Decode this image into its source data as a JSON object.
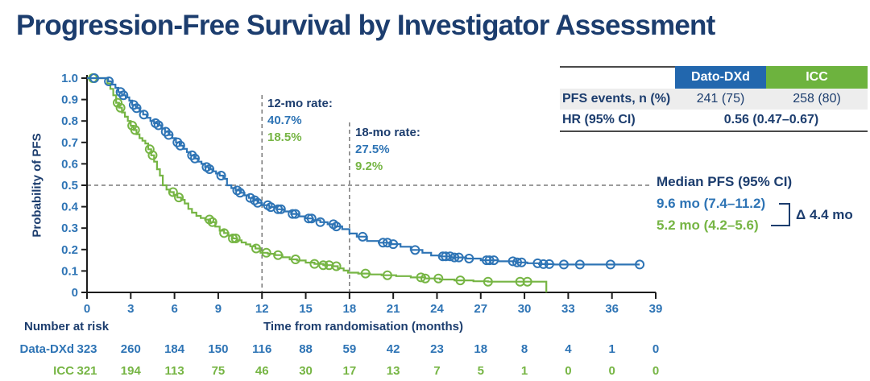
{
  "title": "Progression-Free Survival by Investigator Assessment",
  "colors": {
    "navy": "#1C3D6E",
    "dato_blue": "#2E74B5",
    "icc_green": "#76B544",
    "header_blue": "#2267AE",
    "header_green": "#6DB33E",
    "row_gray": "#EDEDED"
  },
  "summary_table": {
    "columns": [
      "Dato-DXd",
      "ICC"
    ],
    "rows": [
      {
        "label": "PFS events, n (%)",
        "values": [
          "241 (75)",
          "258 (80)"
        ]
      },
      {
        "label": "HR (95% CI)",
        "values": [
          "0.56 (0.47–0.67)"
        ]
      }
    ]
  },
  "annotations": {
    "rate_12mo": {
      "title": "12-mo rate:",
      "values": [
        "40.7%",
        "18.5%"
      ]
    },
    "rate_18mo": {
      "title": "18-mo rate:",
      "values": [
        "27.5%",
        "9.2%"
      ]
    },
    "median": {
      "title": "Median PFS (95% CI)",
      "dato": "9.6 mo (7.4–11.2)",
      "icc": "5.2 mo (4.2–5.6)",
      "delta": "Δ 4.4 mo"
    }
  },
  "chart_data": {
    "type": "line",
    "subtype": "kaplan-meier-step",
    "xlabel": "Time from randomisation (months)",
    "ylabel": "Probability of PFS",
    "xlim": [
      0,
      39
    ],
    "ylim": [
      0,
      1
    ],
    "xticks": [
      0,
      3,
      6,
      9,
      12,
      15,
      18,
      21,
      24,
      27,
      30,
      33,
      36,
      39
    ],
    "yticks": [
      1.0,
      0.9,
      0.8,
      0.7,
      0.6,
      0.5,
      0.4,
      0.3,
      0.2,
      0.1,
      0
    ],
    "ytick_labels": [
      "1.0",
      "0.9",
      "0.8",
      "0.7",
      "0.6",
      "0.5",
      "0.4",
      "0.3",
      "0.2",
      "0.1",
      "0"
    ],
    "grid": false,
    "legend": "none",
    "reference_lines": {
      "y": 0.5,
      "x": [
        12,
        18
      ]
    },
    "series": [
      {
        "name": "Dato-DXd",
        "color": "#2E74B5",
        "median_months": 9.6,
        "rate_12mo": 0.407,
        "rate_18mo": 0.275,
        "end_time": 37.9,
        "drops_to_zero": false,
        "steps": [
          [
            0,
            1
          ],
          [
            1.2,
            1
          ],
          [
            1.45,
            0.985
          ],
          [
            1.7,
            0.97
          ],
          [
            1.95,
            0.955
          ],
          [
            2.15,
            0.935
          ],
          [
            2.4,
            0.92
          ],
          [
            2.65,
            0.91
          ],
          [
            2.9,
            0.895
          ],
          [
            3.1,
            0.875
          ],
          [
            3.35,
            0.86
          ],
          [
            3.6,
            0.845
          ],
          [
            3.85,
            0.83
          ],
          [
            4.1,
            0.815
          ],
          [
            4.35,
            0.8
          ],
          [
            4.6,
            0.79
          ],
          [
            4.85,
            0.78
          ],
          [
            5.1,
            0.765
          ],
          [
            5.35,
            0.75
          ],
          [
            5.6,
            0.735
          ],
          [
            5.85,
            0.72
          ],
          [
            6.1,
            0.7
          ],
          [
            6.35,
            0.685
          ],
          [
            6.6,
            0.67
          ],
          [
            6.85,
            0.655
          ],
          [
            7.1,
            0.64
          ],
          [
            7.35,
            0.625
          ],
          [
            7.6,
            0.61
          ],
          [
            7.85,
            0.6
          ],
          [
            8.1,
            0.585
          ],
          [
            8.35,
            0.575
          ],
          [
            8.6,
            0.565
          ],
          [
            8.85,
            0.555
          ],
          [
            9.1,
            0.545
          ],
          [
            9.35,
            0.53
          ],
          [
            9.6,
            0.5
          ],
          [
            9.9,
            0.487
          ],
          [
            10.2,
            0.476
          ],
          [
            10.5,
            0.465
          ],
          [
            10.8,
            0.453
          ],
          [
            11.1,
            0.441
          ],
          [
            11.4,
            0.43
          ],
          [
            11.7,
            0.418
          ],
          [
            12,
            0.407
          ],
          [
            12.5,
            0.398
          ],
          [
            13,
            0.388
          ],
          [
            13.5,
            0.378
          ],
          [
            14,
            0.366
          ],
          [
            14.5,
            0.355
          ],
          [
            15,
            0.345
          ],
          [
            15.5,
            0.337
          ],
          [
            16,
            0.328
          ],
          [
            16.5,
            0.318
          ],
          [
            17,
            0.308
          ],
          [
            17.5,
            0.295
          ],
          [
            18,
            0.275
          ],
          [
            18.5,
            0.26
          ],
          [
            19.2,
            0.24
          ],
          [
            20,
            0.232
          ],
          [
            20.8,
            0.225
          ],
          [
            21.5,
            0.213
          ],
          [
            22.2,
            0.198
          ],
          [
            23,
            0.185
          ],
          [
            23.6,
            0.172
          ],
          [
            24.2,
            0.168
          ],
          [
            25,
            0.163
          ],
          [
            26,
            0.158
          ],
          [
            27,
            0.15
          ],
          [
            28.2,
            0.145
          ],
          [
            29.4,
            0.14
          ],
          [
            30.2,
            0.136
          ],
          [
            31,
            0.132
          ],
          [
            32,
            0.13
          ]
        ],
        "censor_times": [
          0.5,
          1.5,
          2.3,
          2.5,
          3.2,
          3.4,
          3.9,
          4.7,
          4.9,
          5.4,
          5.6,
          6.2,
          6.4,
          7.2,
          7.4,
          8.2,
          8.4,
          9.2,
          10.3,
          10.5,
          11.2,
          11.5,
          11.7,
          12.4,
          12.6,
          13.1,
          13.3,
          14.1,
          14.3,
          15.2,
          15.4,
          16,
          16.9,
          17.1,
          18.9,
          20.3,
          20.6,
          21,
          22.5,
          24.4,
          24.6,
          24.9,
          25.2,
          25.5,
          26.2,
          27.4,
          27.6,
          27.9,
          29.2,
          29.5,
          29.8,
          30.9,
          31.3,
          31.7,
          32.7,
          33.8,
          35.9,
          37.9
        ]
      },
      {
        "name": "ICC",
        "color": "#76B544",
        "median_months": 5.2,
        "rate_12mo": 0.185,
        "rate_18mo": 0.092,
        "end_time": 31.5,
        "drops_to_zero": true,
        "steps": [
          [
            0,
            1
          ],
          [
            1.2,
            1
          ],
          [
            1.4,
            0.975
          ],
          [
            1.6,
            0.95
          ],
          [
            1.8,
            0.92
          ],
          [
            2,
            0.885
          ],
          [
            2.2,
            0.862
          ],
          [
            2.4,
            0.84
          ],
          [
            2.6,
            0.82
          ],
          [
            2.8,
            0.8
          ],
          [
            3,
            0.778
          ],
          [
            3.2,
            0.758
          ],
          [
            3.4,
            0.738
          ],
          [
            3.6,
            0.72
          ],
          [
            3.8,
            0.708
          ],
          [
            4,
            0.695
          ],
          [
            4.2,
            0.668
          ],
          [
            4.4,
            0.64
          ],
          [
            4.6,
            0.61
          ],
          [
            4.8,
            0.575
          ],
          [
            5,
            0.545
          ],
          [
            5.2,
            0.5
          ],
          [
            5.45,
            0.48
          ],
          [
            5.7,
            0.468
          ],
          [
            5.95,
            0.455
          ],
          [
            6.2,
            0.443
          ],
          [
            6.45,
            0.432
          ],
          [
            6.7,
            0.415
          ],
          [
            6.95,
            0.39
          ],
          [
            7.2,
            0.372
          ],
          [
            7.5,
            0.357
          ],
          [
            7.8,
            0.347
          ],
          [
            8.1,
            0.34
          ],
          [
            8.45,
            0.328
          ],
          [
            8.8,
            0.307
          ],
          [
            9.1,
            0.288
          ],
          [
            9.4,
            0.277
          ],
          [
            9.7,
            0.265
          ],
          [
            10,
            0.252
          ],
          [
            10.3,
            0.243
          ],
          [
            10.6,
            0.233
          ],
          [
            10.9,
            0.224
          ],
          [
            11.2,
            0.215
          ],
          [
            11.55,
            0.205
          ],
          [
            11.9,
            0.185
          ],
          [
            12.4,
            0.18
          ],
          [
            12.9,
            0.174
          ],
          [
            13.4,
            0.164
          ],
          [
            13.9,
            0.154
          ],
          [
            14.4,
            0.149
          ],
          [
            15,
            0.139
          ],
          [
            15.6,
            0.133
          ],
          [
            16.2,
            0.127
          ],
          [
            16.8,
            0.122
          ],
          [
            17.2,
            0.112
          ],
          [
            17.6,
            0.102
          ],
          [
            17.9,
            0.092
          ],
          [
            18.6,
            0.088
          ],
          [
            19.4,
            0.084
          ],
          [
            20.2,
            0.08
          ],
          [
            21.2,
            0.076
          ],
          [
            22.2,
            0.07
          ],
          [
            23.2,
            0.065
          ],
          [
            24.2,
            0.06
          ],
          [
            25.2,
            0.056
          ],
          [
            26.5,
            0.052
          ],
          [
            27.5,
            0.05
          ]
        ],
        "censor_times": [
          0.4,
          2.1,
          2.3,
          3.1,
          3.3,
          4.3,
          4.5,
          5.9,
          6.3,
          8.4,
          8.6,
          9.4,
          10,
          10.2,
          11.6,
          12.3,
          13.1,
          14.3,
          15.6,
          16.2,
          16.6,
          17.1,
          19.1,
          20.6,
          22.9,
          23.2,
          24.1,
          25.6,
          27.5,
          29.7,
          30.2
        ]
      }
    ]
  },
  "number_at_risk": {
    "label": "Number at risk",
    "times": [
      0,
      3,
      6,
      9,
      12,
      15,
      18,
      21,
      24,
      27,
      30,
      33,
      36,
      39
    ],
    "rows": [
      {
        "name": "Data-DXd",
        "color": "#2E74B5",
        "values": [
          323,
          260,
          184,
          150,
          116,
          88,
          59,
          42,
          23,
          18,
          8,
          4,
          1,
          0
        ]
      },
      {
        "name": "ICC",
        "color": "#76B544",
        "values": [
          321,
          194,
          113,
          75,
          46,
          30,
          17,
          13,
          7,
          5,
          1,
          0,
          0,
          0
        ]
      }
    ]
  }
}
